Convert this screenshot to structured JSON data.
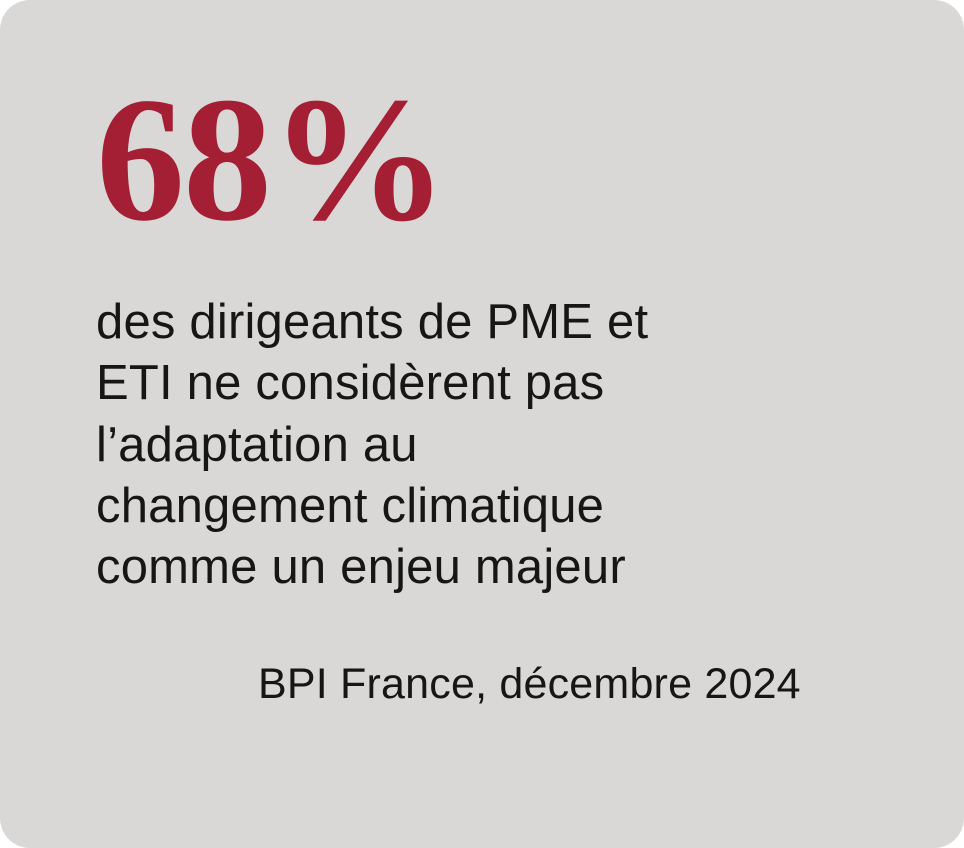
{
  "card": {
    "stat_value": "68%",
    "body": {
      "lines": [
        "des dirigeants de PME et",
        "ETI ne considèrent pas",
        "l’adaptation au",
        "changement climatique",
        "comme un enjeu majeur"
      ]
    },
    "attribution": "BPI France, décembre 2024",
    "colors": {
      "background": "#d9d8d6",
      "stat": "#a41e34",
      "text": "#161616"
    }
  }
}
